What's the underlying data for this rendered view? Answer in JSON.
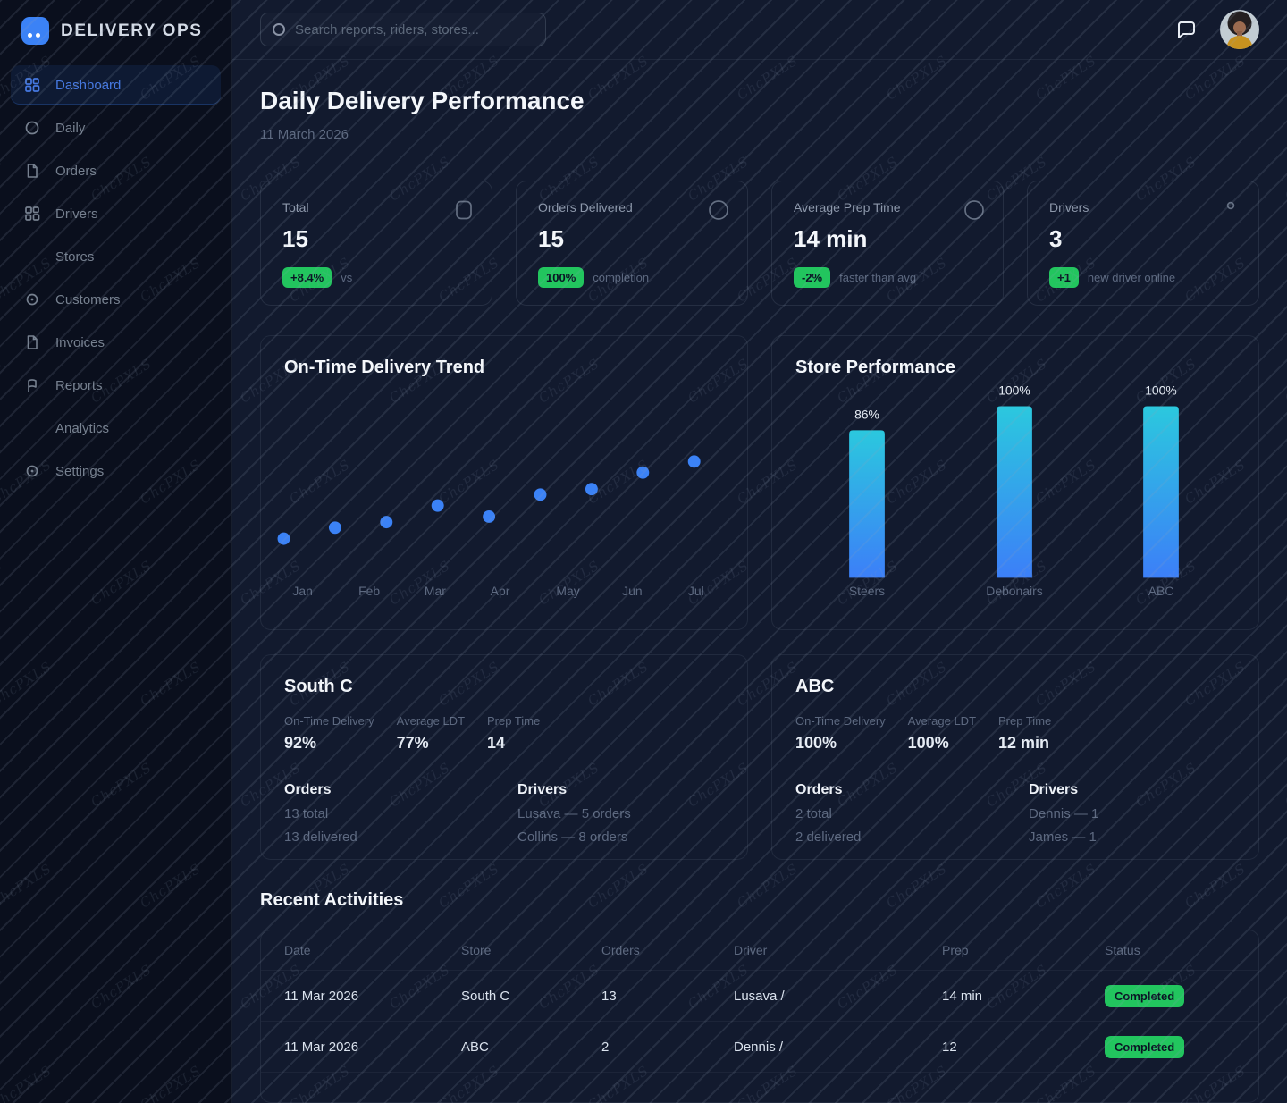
{
  "watermark": {
    "text": "ChcPXLS"
  },
  "colors": {
    "accent": "#3b82f6",
    "green": "#22c55e",
    "badge_text": "#0a1524",
    "bar_gradient_top": "#2bc8de",
    "bar_gradient_bottom": "#3c7ff8"
  },
  "sidebar": {
    "logo_text": "DELIVERY OPS",
    "logo_icon": "app-grid-icon",
    "items": [
      {
        "label": "Dashboard",
        "icon": "grid",
        "active": true
      },
      {
        "label": "Daily",
        "icon": "circle",
        "active": false
      },
      {
        "label": "Orders",
        "icon": "file",
        "active": false
      },
      {
        "label": "Drivers",
        "icon": "grid",
        "active": false
      },
      {
        "label": "Stores",
        "icon": "none",
        "active": false
      },
      {
        "label": "Customers",
        "icon": "dot-circle",
        "active": false
      },
      {
        "label": "Invoices",
        "icon": "file",
        "active": false
      },
      {
        "label": "Reports",
        "icon": "flag",
        "active": false
      },
      {
        "label": "Analytics",
        "icon": "none",
        "active": false
      },
      {
        "label": "Settings",
        "icon": "dot-circle",
        "active": false
      }
    ]
  },
  "topbar": {
    "search_placeholder": "Search reports, riders, stores...",
    "search_icon": "search-circle-icon",
    "chat_icon": "chat-bubble-icon",
    "avatar": "user-avatar-photo"
  },
  "header": {
    "title": "Daily Delivery Performance",
    "date": "11 March 2026"
  },
  "kpis": [
    {
      "label": "Total",
      "value": "15",
      "badge": "+8.4%",
      "suffix": "vs",
      "icon": "receipt"
    },
    {
      "label": "Orders Delivered",
      "value": "15",
      "badge": "100%",
      "suffix": "completion",
      "icon": "circle"
    },
    {
      "label": "Average Prep Time",
      "value": "14 min",
      "badge": "-2%",
      "suffix": "faster than avg",
      "icon": "circle"
    },
    {
      "label": "Drivers",
      "value": "3",
      "badge": "+1",
      "suffix": "new driver online",
      "icon": "dot"
    }
  ],
  "chart_data": [
    {
      "type": "scatter",
      "title": "On-Time Delivery Trend",
      "x_tick_labels": [
        "Jan",
        "Feb",
        "Mar",
        "Apr",
        "May",
        "Jun",
        "Jul"
      ],
      "values": [
        70,
        72,
        73,
        76,
        74,
        78,
        79,
        82,
        84
      ],
      "ylim": [
        60,
        90
      ],
      "grid": false,
      "legend": "none",
      "note": "9 evenly spaced points trending upward; values estimated from dot heights"
    },
    {
      "type": "bar",
      "title": "Store Performance",
      "categories": [
        "Steers",
        "Debonairs",
        "ABC"
      ],
      "values": [
        86,
        100,
        100
      ],
      "value_labels": [
        "86%",
        "100%",
        "100%"
      ],
      "ylim": [
        0,
        100
      ],
      "grid": false,
      "legend": "none"
    }
  ],
  "stores": [
    {
      "name": "South C",
      "stats": [
        {
          "label": "On-Time Delivery",
          "value": "92%"
        },
        {
          "label": "Average LDT",
          "value": "77%"
        },
        {
          "label": "Prep Time",
          "value": "14"
        }
      ],
      "orders_title": "Orders",
      "orders_lines": [
        "13 total",
        "13 delivered"
      ],
      "drivers_title": "Drivers",
      "drivers_lines": [
        "Lusava — 5 orders",
        "Collins — 8 orders"
      ]
    },
    {
      "name": "ABC",
      "stats": [
        {
          "label": "On-Time Delivery",
          "value": "100%"
        },
        {
          "label": "Average LDT",
          "value": "100%"
        },
        {
          "label": "Prep Time",
          "value": "12 min"
        }
      ],
      "orders_title": "Orders",
      "orders_lines": [
        "2 total",
        "2 delivered"
      ],
      "drivers_title": "Drivers",
      "drivers_lines": [
        "Dennis — 1",
        "James — 1"
      ]
    }
  ],
  "activities": {
    "title": "Recent Activities",
    "columns": [
      "Date",
      "Store",
      "Orders",
      "Driver",
      "Prep",
      "Status"
    ],
    "rows": [
      {
        "date": "11 Mar 2026",
        "store": "South C",
        "orders": "13",
        "driver": "Lusava /",
        "prep": "14 min",
        "status": "Completed"
      },
      {
        "date": "11 Mar 2026",
        "store": "ABC",
        "orders": "2",
        "driver": "Dennis /",
        "prep": "12",
        "status": "Completed"
      }
    ]
  }
}
